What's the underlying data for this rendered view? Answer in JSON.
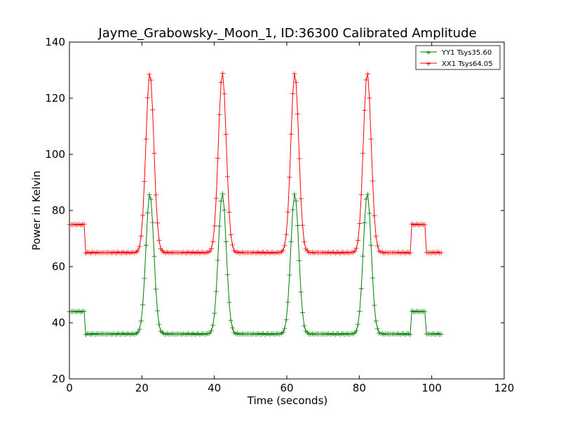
{
  "chart_data": {
    "type": "line",
    "title": "Jayme_Grabowsky-_Moon_1, ID:36300 Calibrated Amplitude",
    "xlabel": "Time (seconds)",
    "ylabel": "Power in Kelvin",
    "xlim": [
      0,
      120
    ],
    "ylim": [
      20,
      140
    ],
    "xticks": [
      "0",
      "20",
      "40",
      "60",
      "80",
      "100",
      "120"
    ],
    "yticks": [
      "20",
      "40",
      "60",
      "80",
      "100",
      "120",
      "140"
    ],
    "grid": false,
    "legend_position": "top-right",
    "marker": "plus",
    "colors": {
      "YY1": "#008000",
      "XX1": "#ff0000"
    },
    "series": [
      {
        "name": "YY1 Tsys35.60",
        "color": "#008000",
        "baseline": 36,
        "segments": [
          {
            "x_start": 0,
            "x_end": 4.4,
            "value": 44
          },
          {
            "x_start": 4.4,
            "x_end": 94.4,
            "value": 36
          },
          {
            "x_start": 94.4,
            "x_end": 98.2,
            "value": 44
          },
          {
            "x_start": 98.2,
            "x_end": 103.0,
            "value": 36
          }
        ],
        "peaks": [
          {
            "x": 22.2,
            "value": 86
          },
          {
            "x": 42.2,
            "value": 86
          },
          {
            "x": 62.2,
            "value": 86
          },
          {
            "x": 82.2,
            "value": 86
          }
        ],
        "peak_width_sigma": 1.1
      },
      {
        "name": "XX1 Tsys64.05",
        "color": "#ff0000",
        "baseline": 65,
        "segments": [
          {
            "x_start": 0,
            "x_end": 4.4,
            "value": 75
          },
          {
            "x_start": 4.4,
            "x_end": 94.4,
            "value": 65
          },
          {
            "x_start": 94.4,
            "x_end": 98.2,
            "value": 75
          },
          {
            "x_start": 98.2,
            "x_end": 103.0,
            "value": 65
          }
        ],
        "peaks": [
          {
            "x": 22.2,
            "value": 129
          },
          {
            "x": 42.2,
            "value": 129
          },
          {
            "x": 62.2,
            "value": 129
          },
          {
            "x": 82.2,
            "value": 129
          }
        ],
        "peak_width_sigma": 1.1
      }
    ]
  }
}
